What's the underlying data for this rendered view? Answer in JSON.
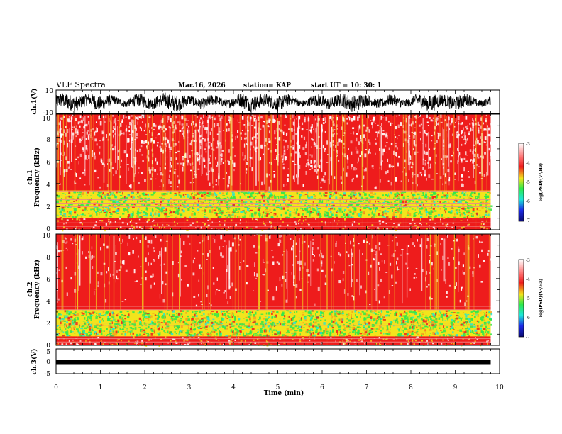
{
  "header": {
    "title": "VLF Spectra",
    "date": "Mar.16, 2026",
    "station": "station= KAP",
    "start": "start  UT  =   10: 30: 1"
  },
  "chart_data": [
    {
      "type": "line",
      "id": "ch1-waveform",
      "ylabel": "ch.1(V)",
      "ylim": [
        -10,
        10
      ],
      "ytick_labels": [
        "10",
        "-10"
      ],
      "xlim": [
        0,
        10
      ],
      "note": "dense time-series trace from t=0 to 9.8 min"
    },
    {
      "type": "heatmap",
      "id": "ch1-spectrogram",
      "ylabel": "ch.1\nFrequency  (kHz)",
      "ylim": [
        0,
        10
      ],
      "ytick_labels": [
        "0",
        "2",
        "4",
        "6",
        "8",
        "10"
      ],
      "xlim": [
        0,
        10
      ],
      "data_extent_min": 9.8,
      "colorbar": {
        "label": "log(PSD)(V²/Hz)",
        "range": [
          -7,
          -3
        ],
        "tick_labels": [
          "-3",
          "-4",
          "-5",
          "-6",
          "-7"
        ]
      },
      "green_band_khz": [
        1.0,
        3.4
      ],
      "notch_lines_khz": [
        0.3,
        0.6,
        2.0,
        2.3,
        2.6,
        3.3
      ]
    },
    {
      "type": "heatmap",
      "id": "ch2-spectrogram",
      "ylabel": "ch.2\nFrequency  (kHz)",
      "ylim": [
        0,
        10
      ],
      "ytick_labels": [
        "0",
        "2",
        "4",
        "6",
        "8",
        "10"
      ],
      "xlim": [
        0,
        10
      ],
      "data_extent_min": 9.8,
      "colorbar": {
        "label": "log(PSD)(V²/Hz)",
        "range": [
          -7,
          -3
        ],
        "tick_labels": [
          "-3",
          "-4",
          "-5",
          "-6",
          "-7"
        ]
      },
      "green_band_khz": [
        0.8,
        3.2
      ],
      "notch_lines_khz": [
        0.3,
        0.6,
        1.8,
        2.0,
        3.2,
        3.5
      ]
    },
    {
      "type": "line",
      "id": "ch3-waveform",
      "ylabel": "ch.3(V)",
      "ylim": [
        -5,
        5
      ],
      "ytick_labels": [
        "5",
        "0",
        "-5"
      ],
      "xlim": [
        0,
        10
      ],
      "level_v": 0,
      "note": "thick constant trace near 0 V"
    }
  ],
  "xaxis": {
    "label": "Time  (min)",
    "range": [
      0,
      10
    ],
    "tick_labels": [
      "0",
      "1",
      "2",
      "3",
      "4",
      "5",
      "6",
      "7",
      "8",
      "9",
      "10"
    ]
  },
  "colors": {
    "trace": "#000000",
    "white": "#ffffff",
    "red": "#ee1c1c",
    "yellow": "#f3e41c",
    "green": "#2ee84a",
    "cyan": "#1ce6d8",
    "blue": "#1c2ae6",
    "navy": "#0a0a70"
  }
}
